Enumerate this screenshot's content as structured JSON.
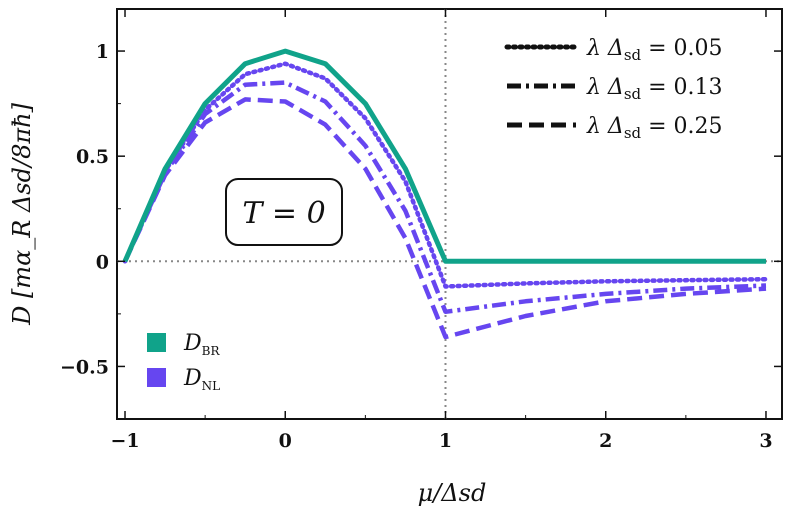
{
  "chart_data": {
    "type": "line",
    "xlabel": "μ/Δsd",
    "ylabel": "D [mα_R Δsd/8πħ]",
    "xlim": [
      -1.05,
      3.1
    ],
    "ylim": [
      -0.75,
      1.2
    ],
    "x_ticks": [
      -1,
      0,
      1,
      2,
      3
    ],
    "y_ticks": [
      -0.5,
      0,
      0.5,
      1
    ],
    "x_tick_labels": [
      "−1",
      "0",
      "1",
      "2",
      "3"
    ],
    "y_tick_labels": [
      "−0.5",
      "0",
      "0.5",
      "1"
    ],
    "reference_lines": [
      {
        "orientation": "horizontal",
        "value": 0,
        "style": "dotted",
        "color": "#888888"
      },
      {
        "orientation": "vertical",
        "value": 1,
        "style": "dotted",
        "color": "#888888"
      }
    ],
    "annotation": "T = 0",
    "series": [
      {
        "name": "D_BR",
        "color": "#10a38a",
        "dash": "solid",
        "x": [
          -1,
          -0.75,
          -0.5,
          -0.25,
          0,
          0.25,
          0.5,
          0.75,
          1,
          1.5,
          2,
          2.5,
          3
        ],
        "y": [
          0,
          0.44,
          0.75,
          0.94,
          1.0,
          0.94,
          0.75,
          0.44,
          0,
          0,
          0,
          0,
          0
        ]
      },
      {
        "name": "λ Δsd = 0.05",
        "color": "#6646f0",
        "dash": "dotted",
        "x": [
          -1,
          -0.75,
          -0.5,
          -0.25,
          0,
          0.25,
          0.5,
          0.75,
          1,
          1.5,
          2,
          2.5,
          3
        ],
        "y": [
          0,
          0.43,
          0.72,
          0.89,
          0.94,
          0.87,
          0.68,
          0.38,
          -0.12,
          -0.105,
          -0.095,
          -0.09,
          -0.085
        ]
      },
      {
        "name": "λ Δsd = 0.13",
        "color": "#6646f0",
        "dash": "dashdot",
        "x": [
          -1,
          -0.75,
          -0.5,
          -0.25,
          0,
          0.25,
          0.5,
          0.75,
          1,
          1.5,
          2,
          2.5,
          3
        ],
        "y": [
          0,
          0.42,
          0.7,
          0.84,
          0.85,
          0.76,
          0.55,
          0.24,
          -0.24,
          -0.19,
          -0.155,
          -0.13,
          -0.115
        ]
      },
      {
        "name": "λ Δsd = 0.25",
        "color": "#6646f0",
        "dash": "dashed",
        "x": [
          -1,
          -0.75,
          -0.5,
          -0.25,
          0,
          0.25,
          0.5,
          0.75,
          1,
          1.5,
          2,
          2.5,
          3
        ],
        "y": [
          0,
          0.41,
          0.66,
          0.77,
          0.76,
          0.65,
          0.44,
          0.11,
          -0.36,
          -0.26,
          -0.19,
          -0.155,
          -0.13
        ]
      }
    ],
    "legend_style": {
      "placement": "top-right",
      "entries": [
        {
          "label_prefix": "λ Δ",
          "label_sub": "sd",
          "label_suffix": " = 0.05",
          "dash": "dotted"
        },
        {
          "label_prefix": "λ Δ",
          "label_sub": "sd",
          "label_suffix": " = 0.13",
          "dash": "dashdot"
        },
        {
          "label_prefix": "λ Δ",
          "label_sub": "sd",
          "label_suffix": " = 0.25",
          "dash": "dashed"
        }
      ]
    },
    "legend_color": {
      "placement": "bottom-left",
      "entries": [
        {
          "label": "D",
          "sub": "BR",
          "color": "#10a38a"
        },
        {
          "label": "D",
          "sub": "NL",
          "color": "#6646f0"
        }
      ]
    }
  }
}
